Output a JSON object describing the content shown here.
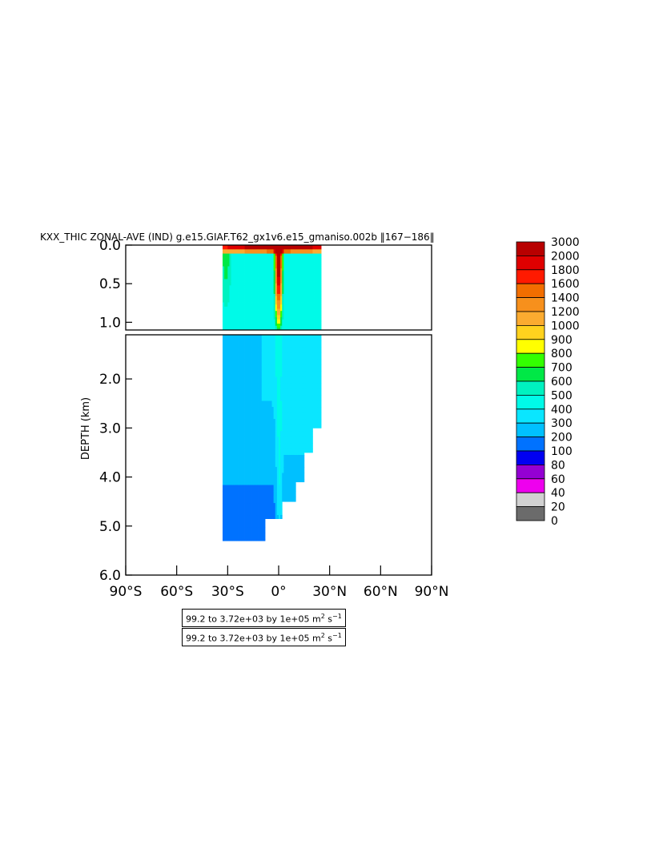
{
  "chart_data": {
    "type": "heatmap",
    "title": "KXX_THIC ZONAL-AVE (IND) g.e15.GIAF.T62_gx1v6.e15_gmaniso.002b ‖167−186‖",
    "ylabel": "DEPTH (km)",
    "xlabel": "",
    "x_ticks": [
      "90°S",
      "60°S",
      "30°S",
      "0°",
      "30°N",
      "60°N",
      "90°N"
    ],
    "x_tick_values": [
      -90,
      -60,
      -30,
      0,
      30,
      60,
      90
    ],
    "xlim": [
      -90,
      90
    ],
    "upper_panel": {
      "ylim": [
        0.0,
        1.1
      ],
      "y_ticks": [
        "0.0",
        "0.5",
        "1.0"
      ],
      "y_tick_values": [
        0.0,
        0.5,
        1.0
      ]
    },
    "lower_panel": {
      "ylim": [
        1.1,
        6.0
      ],
      "y_ticks": [
        "2.0",
        "3.0",
        "4.0",
        "5.0",
        "6.0"
      ],
      "y_tick_values": [
        2.0,
        3.0,
        4.0,
        5.0,
        6.0
      ]
    },
    "colorbar": {
      "levels": [
        "3000",
        "2000",
        "1800",
        "1600",
        "1400",
        "1200",
        "1000",
        "900",
        "800",
        "700",
        "600",
        "500",
        "400",
        "300",
        "200",
        "100",
        "80",
        "60",
        "40",
        "20",
        "0"
      ],
      "colors": [
        "#b80000",
        "#e00000",
        "#ff1a00",
        "#f26e00",
        "#f7901c",
        "#fbab30",
        "#ffd21e",
        "#ffff00",
        "#33ff00",
        "#00e846",
        "#00f2c0",
        "#00fae8",
        "#0ae6ff",
        "#00c0ff",
        "#0072ff",
        "#0000f2",
        "#9400d3",
        "#ee00ee",
        "#d1d1d1",
        "#6b6b6b"
      ]
    },
    "field_min": 99.2,
    "field_max": 3720,
    "contour_interval": 100000,
    "units": "m² s⁻¹",
    "data_extent": {
      "lat_min": -33,
      "lat_max": 25,
      "max_depth_km": 5.4
    },
    "surface_values": [
      {
        "lat": -32,
        "depth_km": 0.0,
        "value": 1800
      },
      {
        "lat": -20,
        "depth_km": 0.0,
        "value": 2000
      },
      {
        "lat": 0,
        "depth_km": 0.0,
        "value": 3000
      },
      {
        "lat": 15,
        "depth_km": 0.0,
        "value": 1600
      },
      {
        "lat": 24,
        "depth_km": 0.0,
        "value": 1400
      }
    ],
    "interior_values": [
      {
        "lat": -30,
        "depth_km": 0.5,
        "value": 700
      },
      {
        "lat": 0,
        "depth_km": 0.5,
        "value": 1800
      },
      {
        "lat": 15,
        "depth_km": 0.5,
        "value": 300
      },
      {
        "lat": -15,
        "depth_km": 2.0,
        "value": 300
      },
      {
        "lat": 10,
        "depth_km": 3.0,
        "value": 300
      },
      {
        "lat": -25,
        "depth_km": 4.5,
        "value": 200
      }
    ]
  },
  "info_boxes": [
    {
      "prefix": "99.2 to 3.72e+03 by 1e+05 m",
      "sup1": "2",
      "mid": " s",
      "sup2": "−1"
    },
    {
      "prefix": "99.2 to 3.72e+03 by 1e+05 m",
      "sup1": "2",
      "mid": " s",
      "sup2": "−1"
    }
  ]
}
